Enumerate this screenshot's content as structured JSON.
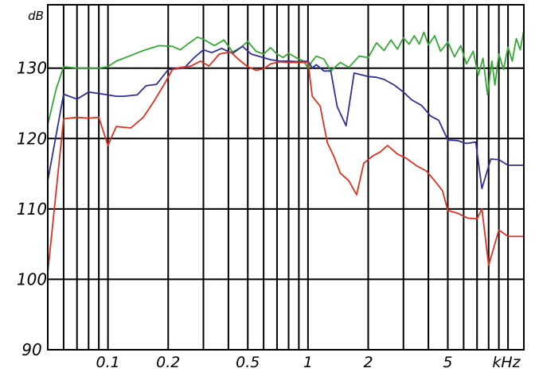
{
  "chart_data": {
    "type": "line",
    "x_scale": "log",
    "x_unit": "kHz",
    "y_unit": "dB",
    "xlim": [
      0.05,
      12
    ],
    "ylim": [
      90,
      139
    ],
    "grid": true,
    "x_ticks": [
      {
        "value": 0.1,
        "label": "0.1"
      },
      {
        "value": 0.2,
        "label": "0.2"
      },
      {
        "value": 0.5,
        "label": "0.5"
      },
      {
        "value": 1,
        "label": "1"
      },
      {
        "value": 2,
        "label": "2"
      },
      {
        "value": 5,
        "label": "5"
      }
    ],
    "y_ticks": [
      {
        "value": 90,
        "label": "90"
      },
      {
        "value": 100,
        "label": "100"
      },
      {
        "value": 110,
        "label": "110"
      },
      {
        "value": 120,
        "label": "120"
      },
      {
        "value": 130,
        "label": "130"
      }
    ],
    "series": [
      {
        "color": "#33aa33",
        "points": [
          [
            0.05,
            122.0
          ],
          [
            0.055,
            127.0
          ],
          [
            0.06,
            130.2
          ],
          [
            0.07,
            130.0
          ],
          [
            0.08,
            130.0
          ],
          [
            0.09,
            130.0
          ],
          [
            0.1,
            130.2
          ],
          [
            0.11,
            131.0
          ],
          [
            0.13,
            131.8
          ],
          [
            0.15,
            132.5
          ],
          [
            0.18,
            133.2
          ],
          [
            0.21,
            133.1
          ],
          [
            0.23,
            132.6
          ],
          [
            0.25,
            133.4
          ],
          [
            0.28,
            134.4
          ],
          [
            0.3,
            134.1
          ],
          [
            0.34,
            133.2
          ],
          [
            0.38,
            134.0
          ],
          [
            0.42,
            132.3
          ],
          [
            0.46,
            132.9
          ],
          [
            0.5,
            133.8
          ],
          [
            0.55,
            132.4
          ],
          [
            0.6,
            132.0
          ],
          [
            0.65,
            132.9
          ],
          [
            0.7,
            132.0
          ],
          [
            0.75,
            131.5
          ],
          [
            0.8,
            132.1
          ],
          [
            0.87,
            131.5
          ],
          [
            0.95,
            131.0
          ],
          [
            1.0,
            130.0
          ],
          [
            1.05,
            131.0
          ],
          [
            1.1,
            131.7
          ],
          [
            1.2,
            131.3
          ],
          [
            1.3,
            129.6
          ],
          [
            1.45,
            130.8
          ],
          [
            1.6,
            130.1
          ],
          [
            1.8,
            131.7
          ],
          [
            2.0,
            131.5
          ],
          [
            2.2,
            133.6
          ],
          [
            2.4,
            132.5
          ],
          [
            2.6,
            134.0
          ],
          [
            2.8,
            132.7
          ],
          [
            3.0,
            134.3
          ],
          [
            3.2,
            133.4
          ],
          [
            3.4,
            134.6
          ],
          [
            3.6,
            133.4
          ],
          [
            3.8,
            135.1
          ],
          [
            4.0,
            133.3
          ],
          [
            4.3,
            134.6
          ],
          [
            4.6,
            132.4
          ],
          [
            5.0,
            133.7
          ],
          [
            5.4,
            131.6
          ],
          [
            5.8,
            133.2
          ],
          [
            6.2,
            130.6
          ],
          [
            6.7,
            132.4
          ],
          [
            7.1,
            129.0
          ],
          [
            7.5,
            131.4
          ],
          [
            7.9,
            126.2
          ],
          [
            8.3,
            131.0
          ],
          [
            8.6,
            127.6
          ],
          [
            9.0,
            132.0
          ],
          [
            9.5,
            129.8
          ],
          [
            10.0,
            133.0
          ],
          [
            10.5,
            131.0
          ],
          [
            11.0,
            134.2
          ],
          [
            11.5,
            132.6
          ],
          [
            12.0,
            135.4
          ]
        ]
      },
      {
        "color": "#303096",
        "points": [
          [
            0.05,
            114.0
          ],
          [
            0.06,
            126.3
          ],
          [
            0.07,
            125.6
          ],
          [
            0.08,
            126.6
          ],
          [
            0.09,
            126.4
          ],
          [
            0.1,
            126.2
          ],
          [
            0.11,
            126.0
          ],
          [
            0.12,
            126.0
          ],
          [
            0.14,
            126.2
          ],
          [
            0.155,
            127.5
          ],
          [
            0.175,
            127.7
          ],
          [
            0.2,
            129.8
          ],
          [
            0.24,
            130.0
          ],
          [
            0.27,
            131.5
          ],
          [
            0.3,
            132.6
          ],
          [
            0.33,
            132.2
          ],
          [
            0.37,
            132.8
          ],
          [
            0.42,
            132.1
          ],
          [
            0.47,
            133.1
          ],
          [
            0.52,
            132.0
          ],
          [
            0.58,
            131.6
          ],
          [
            0.65,
            131.2
          ],
          [
            0.72,
            131.0
          ],
          [
            0.8,
            131.0
          ],
          [
            0.9,
            130.9
          ],
          [
            1.0,
            131.0
          ],
          [
            1.05,
            130.0
          ],
          [
            1.1,
            130.5
          ],
          [
            1.2,
            129.6
          ],
          [
            1.3,
            129.6
          ],
          [
            1.4,
            124.5
          ],
          [
            1.55,
            121.8
          ],
          [
            1.7,
            129.3
          ],
          [
            2.0,
            128.8
          ],
          [
            2.2,
            128.7
          ],
          [
            2.4,
            128.4
          ],
          [
            2.7,
            127.6
          ],
          [
            3.0,
            126.6
          ],
          [
            3.3,
            125.5
          ],
          [
            3.7,
            124.7
          ],
          [
            4.1,
            123.2
          ],
          [
            4.5,
            122.6
          ],
          [
            5.0,
            119.8
          ],
          [
            5.6,
            119.7
          ],
          [
            6.2,
            119.3
          ],
          [
            6.9,
            119.5
          ],
          [
            7.4,
            112.9
          ],
          [
            8.2,
            117.1
          ],
          [
            9.0,
            117.0
          ],
          [
            10.0,
            116.2
          ],
          [
            12.0,
            116.2
          ]
        ]
      },
      {
        "color": "#e03020",
        "points": [
          [
            0.05,
            101.0
          ],
          [
            0.06,
            122.8
          ],
          [
            0.07,
            123.0
          ],
          [
            0.08,
            122.9
          ],
          [
            0.09,
            123.0
          ],
          [
            0.1,
            119.0
          ],
          [
            0.11,
            121.7
          ],
          [
            0.13,
            121.5
          ],
          [
            0.15,
            123.0
          ],
          [
            0.17,
            125.3
          ],
          [
            0.19,
            127.6
          ],
          [
            0.21,
            129.8
          ],
          [
            0.23,
            130.1
          ],
          [
            0.26,
            130.3
          ],
          [
            0.29,
            131.0
          ],
          [
            0.32,
            130.3
          ],
          [
            0.36,
            132.0
          ],
          [
            0.41,
            132.3
          ],
          [
            0.46,
            131.0
          ],
          [
            0.5,
            130.2
          ],
          [
            0.55,
            129.7
          ],
          [
            0.6,
            129.9
          ],
          [
            0.65,
            130.6
          ],
          [
            0.72,
            130.9
          ],
          [
            0.8,
            130.8
          ],
          [
            1.0,
            130.8
          ],
          [
            1.05,
            126.0
          ],
          [
            1.15,
            124.6
          ],
          [
            1.25,
            119.4
          ],
          [
            1.35,
            117.4
          ],
          [
            1.45,
            115.1
          ],
          [
            1.6,
            114.0
          ],
          [
            1.75,
            112.0
          ],
          [
            1.9,
            116.5
          ],
          [
            2.1,
            117.5
          ],
          [
            2.3,
            118.1
          ],
          [
            2.5,
            119.0
          ],
          [
            2.8,
            117.8
          ],
          [
            3.1,
            117.2
          ],
          [
            3.5,
            116.1
          ],
          [
            3.9,
            115.4
          ],
          [
            4.3,
            114.0
          ],
          [
            4.7,
            112.6
          ],
          [
            5.0,
            109.8
          ],
          [
            5.6,
            109.4
          ],
          [
            6.3,
            108.7
          ],
          [
            7.0,
            108.6
          ],
          [
            7.4,
            110.0
          ],
          [
            8.0,
            102.0
          ],
          [
            9.0,
            107.0
          ],
          [
            10.0,
            106.1
          ],
          [
            12.0,
            106.1
          ]
        ]
      }
    ]
  }
}
